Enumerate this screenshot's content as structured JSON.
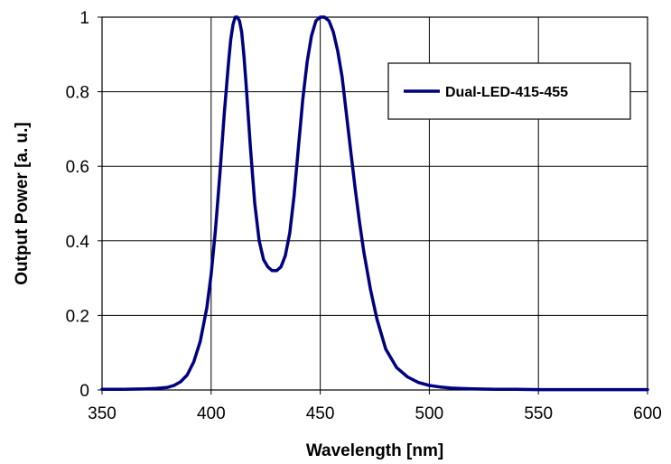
{
  "chart_data": {
    "type": "line",
    "title": "",
    "xlabel": "Wavelength [nm]",
    "ylabel": "Output Power [a. u.]",
    "xlim": [
      350,
      600
    ],
    "ylim": [
      0,
      1
    ],
    "xticks": [
      "350",
      "400",
      "450",
      "500",
      "550",
      "600"
    ],
    "yticks": [
      "0",
      "0.2",
      "0.4",
      "0.6",
      "0.8",
      "1"
    ],
    "grid": true,
    "legend_position": "top-right",
    "series_color": "#000080",
    "series": [
      {
        "name": "Dual-LED-415-455",
        "x": [
          350,
          360,
          370,
          375,
          380,
          383,
          386,
          389,
          392,
          395,
          398,
          400,
          402,
          404,
          406,
          408,
          409,
          410,
          411,
          412,
          413,
          414,
          415,
          416,
          418,
          420,
          422,
          424,
          426,
          428,
          430,
          432,
          434,
          436,
          438,
          440,
          442,
          444,
          446,
          448,
          450,
          452,
          454,
          456,
          458,
          460,
          462,
          464,
          466,
          468,
          470,
          473,
          476,
          480,
          485,
          490,
          495,
          500,
          505,
          510,
          520,
          530,
          540,
          550,
          560,
          580,
          600
        ],
        "y": [
          0.002,
          0.002,
          0.003,
          0.004,
          0.007,
          0.012,
          0.022,
          0.04,
          0.075,
          0.13,
          0.22,
          0.31,
          0.43,
          0.58,
          0.74,
          0.88,
          0.94,
          0.98,
          1.0,
          1.0,
          0.99,
          0.96,
          0.9,
          0.82,
          0.65,
          0.5,
          0.4,
          0.35,
          0.33,
          0.32,
          0.32,
          0.33,
          0.36,
          0.42,
          0.52,
          0.65,
          0.78,
          0.88,
          0.95,
          0.99,
          1.0,
          1.0,
          0.99,
          0.96,
          0.91,
          0.84,
          0.74,
          0.64,
          0.54,
          0.45,
          0.37,
          0.27,
          0.19,
          0.11,
          0.06,
          0.035,
          0.02,
          0.012,
          0.008,
          0.005,
          0.003,
          0.002,
          0.002,
          0.001,
          0.001,
          0.001,
          0.001
        ]
      }
    ]
  }
}
